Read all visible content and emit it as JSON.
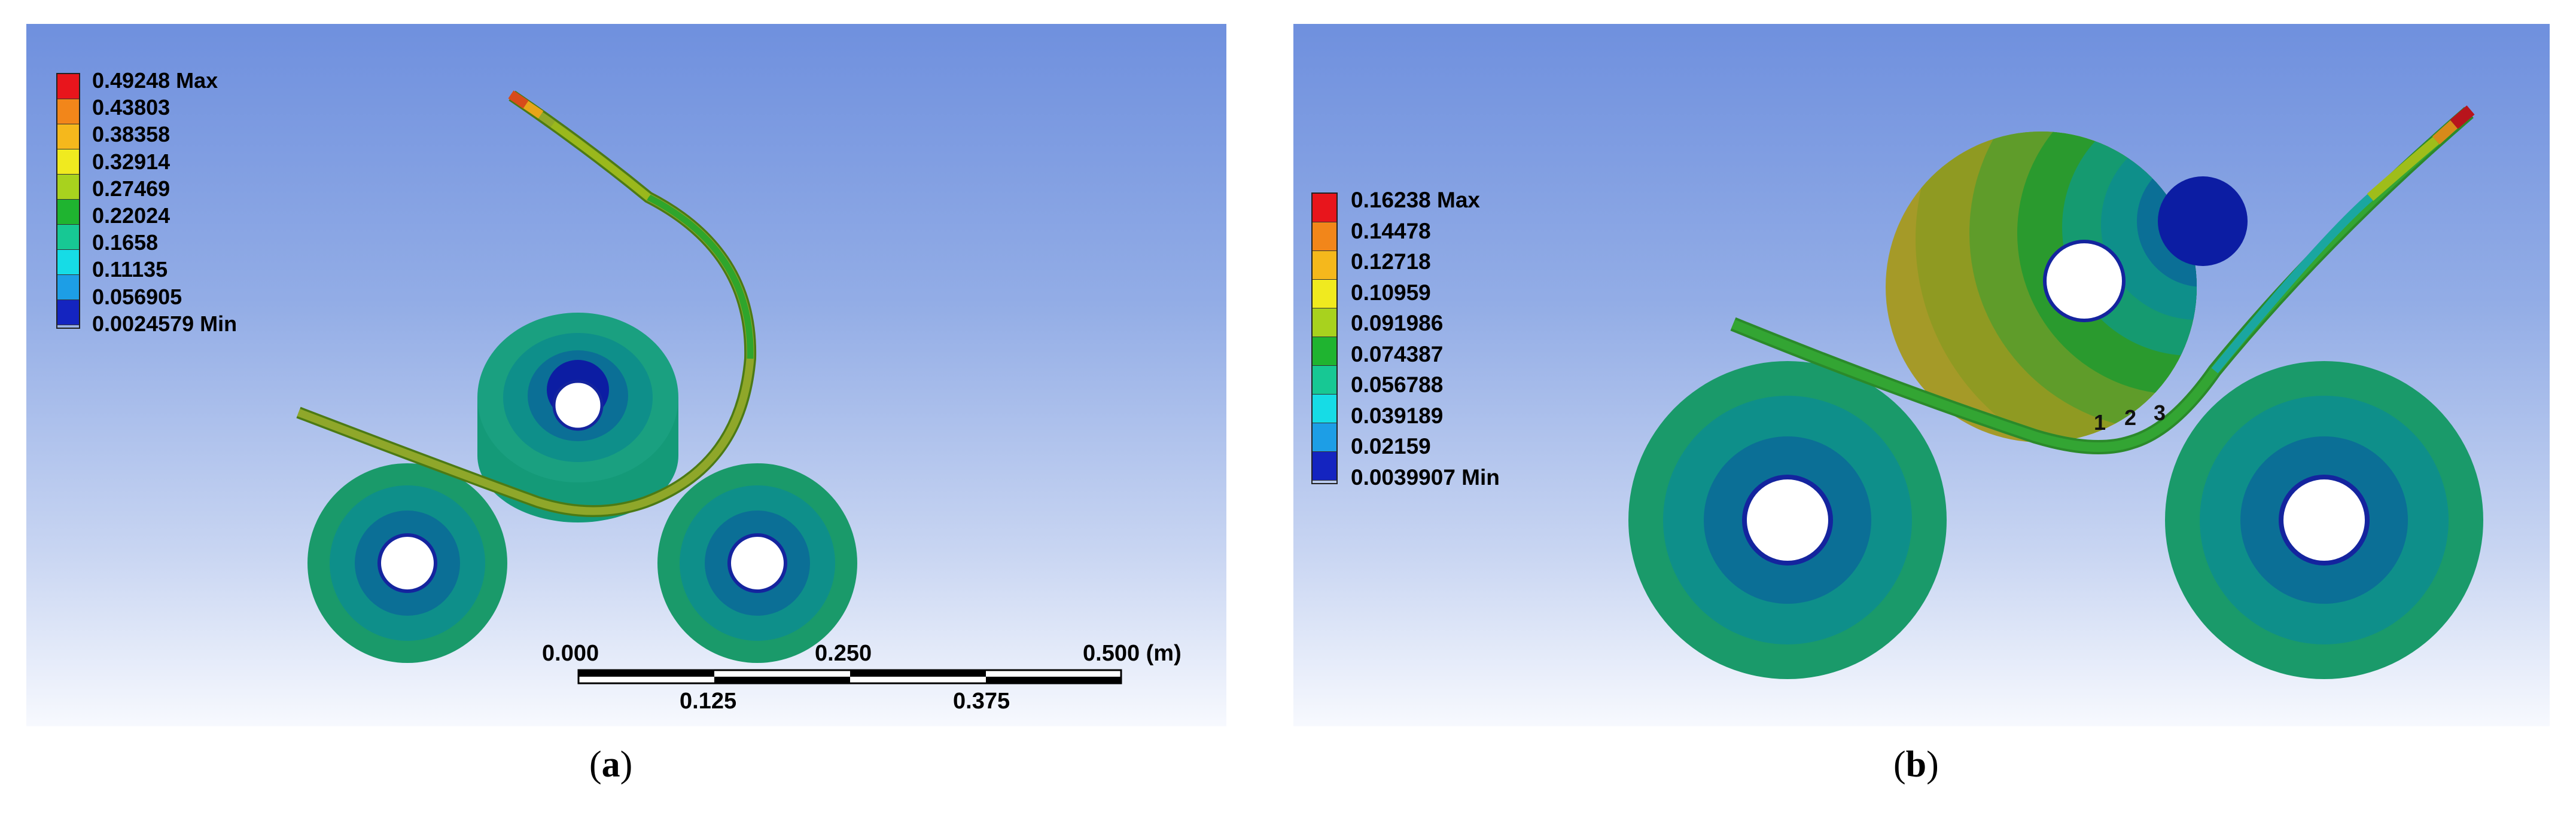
{
  "panels": [
    {
      "id": "a",
      "caption_open": "(",
      "caption_letter": "a",
      "caption_close": ")",
      "legend": {
        "labels": [
          "0.49248 Max",
          "0.43803",
          "0.38358",
          "0.32914",
          "0.27469",
          "0.22024",
          "0.1658",
          "0.11135",
          "0.056905",
          "0.0024579 Min"
        ],
        "colors": [
          "#e8151c",
          "#f2861a",
          "#f5b81c",
          "#f0ea1f",
          "#a8d21e",
          "#1fb430",
          "#17c894",
          "#16dce6",
          "#1d9ee6",
          "#1424c0"
        ]
      },
      "scale_bar": {
        "top_labels": [
          "0.000",
          "0.250",
          "0.500 (m)"
        ],
        "bottom_labels": [
          "0.125",
          "0.375"
        ]
      }
    },
    {
      "id": "b",
      "caption_open": "(",
      "caption_letter": "b",
      "caption_close": ")",
      "legend": {
        "labels": [
          "0.16238 Max",
          "0.14478",
          "0.12718",
          "0.10959",
          "0.091986",
          "0.074387",
          "0.056788",
          "0.039189",
          "0.02159",
          "0.0039907 Min"
        ],
        "colors": [
          "#e8151c",
          "#f2861a",
          "#f5b81c",
          "#f0ea1f",
          "#a8d21e",
          "#1fb430",
          "#17c894",
          "#16dce6",
          "#1d9ee6",
          "#1424c0"
        ]
      },
      "point_labels": [
        "1",
        "2",
        "3"
      ]
    }
  ]
}
